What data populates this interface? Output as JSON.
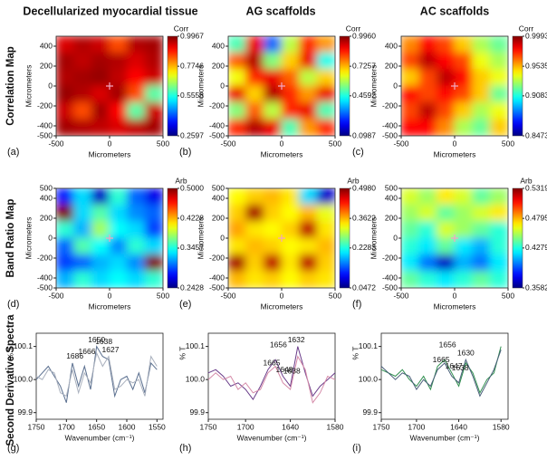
{
  "column_titles": [
    "Decellularized myocardial tissue",
    "AG scaffolds",
    "AC scaffolds"
  ],
  "row_titles": [
    "Correlation Map",
    "Band Ratio Map",
    "Second Derivative Spectra"
  ],
  "chart_data": [
    {
      "type": "heatmap",
      "panel": "(a)",
      "xlabel": "Micrometers",
      "ylabel": "Micrometers",
      "colorbar_title": "Corr",
      "colormap": "jet",
      "xlim": [
        -500,
        500
      ],
      "ylim": [
        -500,
        500
      ],
      "xticks": [
        -500,
        0,
        500
      ],
      "yticks": [
        -500,
        -400,
        -200,
        0,
        200,
        400
      ],
      "clim": [
        0.2597,
        0.9967
      ],
      "cticks": [
        0.9967,
        0.7746,
        0.5558,
        0.2597
      ],
      "z": [
        [
          0.93,
          0.96,
          0.94,
          0.85,
          0.96,
          0.97
        ],
        [
          0.97,
          0.95,
          0.97,
          0.96,
          0.93,
          0.96
        ],
        [
          0.96,
          0.97,
          0.98,
          0.95,
          0.9,
          0.94
        ],
        [
          0.98,
          0.96,
          0.93,
          0.97,
          0.85,
          0.6
        ],
        [
          0.94,
          0.85,
          0.97,
          0.9,
          0.6,
          0.94
        ],
        [
          0.97,
          0.96,
          0.95,
          0.93,
          0.95,
          0.97
        ]
      ]
    },
    {
      "type": "heatmap",
      "panel": "(b)",
      "xlabel": "Micrometers",
      "ylabel": "Micrometers",
      "colorbar_title": "Corr",
      "colormap": "jet",
      "xlim": [
        -500,
        500
      ],
      "ylim": [
        -500,
        500
      ],
      "xticks": [
        -500,
        0,
        500
      ],
      "yticks": [
        -500,
        -400,
        -200,
        0,
        200,
        400
      ],
      "clim": [
        0.0987,
        0.996
      ],
      "cticks": [
        {
          "value": 0.996,
          "label": "0.9960"
        },
        0.7257,
        0.4592,
        0.0987
      ],
      "z": [
        [
          0.5,
          0.9,
          0.3,
          0.6,
          0.85,
          0.75
        ],
        [
          0.8,
          0.95,
          0.55,
          0.7,
          0.9,
          0.45
        ],
        [
          0.65,
          0.85,
          0.9,
          0.8,
          0.6,
          0.7
        ],
        [
          0.9,
          0.7,
          0.95,
          0.85,
          0.75,
          0.9
        ],
        [
          0.55,
          0.8,
          0.6,
          0.85,
          0.9,
          0.5
        ],
        [
          0.85,
          0.95,
          0.9,
          0.5,
          0.75,
          0.85
        ]
      ]
    },
    {
      "type": "heatmap",
      "panel": "(c)",
      "xlabel": "Micrometers",
      "ylabel": "Micrometers",
      "colorbar_title": "Corr",
      "colormap": "jet",
      "xlim": [
        -500,
        500
      ],
      "ylim": [
        -500,
        500
      ],
      "xticks": [
        -500,
        0,
        500
      ],
      "yticks": [
        -500,
        -400,
        -200,
        0,
        200,
        400
      ],
      "clim": [
        0.8473,
        0.9993
      ],
      "cticks": [
        0.9993,
        0.9535,
        0.9083,
        0.8473
      ],
      "z": [
        [
          0.96,
          0.98,
          0.97,
          0.95,
          0.93,
          0.92
        ],
        [
          0.97,
          0.99,
          0.98,
          0.97,
          0.94,
          0.93
        ],
        [
          0.95,
          0.97,
          0.99,
          0.98,
          0.95,
          0.94
        ],
        [
          0.98,
          0.97,
          0.98,
          0.97,
          0.95,
          0.92
        ],
        [
          0.97,
          0.99,
          0.97,
          0.95,
          0.93,
          0.94
        ],
        [
          0.98,
          0.98,
          0.96,
          0.93,
          0.92,
          0.95
        ]
      ]
    },
    {
      "type": "heatmap",
      "panel": "(d)",
      "xlabel": "Micrometers",
      "ylabel": "Micrometers",
      "colorbar_title": "Arb",
      "colormap": "jet",
      "xlim": [
        -500,
        500
      ],
      "ylim": [
        -500,
        500
      ],
      "xticks": [
        -500,
        0,
        500
      ],
      "yticks": [
        -500,
        -400,
        -200,
        0,
        200,
        400,
        500
      ],
      "clim": [
        0.2428,
        0.5
      ],
      "cticks": [
        {
          "value": 0.5,
          "label": "0.5000"
        },
        0.4228,
        0.3457,
        0.2428
      ],
      "z": [
        [
          0.28,
          0.33,
          0.26,
          0.35,
          0.3,
          0.27
        ],
        [
          0.5,
          0.33,
          0.36,
          0.33,
          0.31,
          0.3
        ],
        [
          0.35,
          0.32,
          0.38,
          0.34,
          0.33,
          0.29
        ],
        [
          0.3,
          0.36,
          0.34,
          0.31,
          0.35,
          0.33
        ],
        [
          0.29,
          0.3,
          0.32,
          0.33,
          0.31,
          0.5
        ],
        [
          0.32,
          0.35,
          0.33,
          0.34,
          0.33,
          0.35
        ]
      ]
    },
    {
      "type": "heatmap",
      "panel": "(e)",
      "xlabel": "Micrometers",
      "ylabel": "Micrometers",
      "colorbar_title": "Arb",
      "colormap": "jet",
      "xlim": [
        -500,
        500
      ],
      "ylim": [
        -500,
        500
      ],
      "xticks": [
        -500,
        0,
        500
      ],
      "yticks": [
        -500,
        -400,
        -200,
        0,
        200,
        400,
        500
      ],
      "clim": [
        0.0472,
        0.498
      ],
      "cticks": [
        {
          "value": 0.498,
          "label": "0.4980"
        },
        0.3622,
        0.2283,
        0.0472
      ],
      "z": [
        [
          0.33,
          0.35,
          0.36,
          0.34,
          0.2,
          0.08
        ],
        [
          0.35,
          0.48,
          0.35,
          0.33,
          0.36,
          0.32
        ],
        [
          0.37,
          0.34,
          0.33,
          0.35,
          0.47,
          0.34
        ],
        [
          0.34,
          0.36,
          0.35,
          0.33,
          0.34,
          0.36
        ],
        [
          0.48,
          0.35,
          0.47,
          0.34,
          0.47,
          0.35
        ],
        [
          0.36,
          0.34,
          0.35,
          0.33,
          0.35,
          0.34
        ]
      ]
    },
    {
      "type": "heatmap",
      "panel": "(f)",
      "xlabel": "Micrometers",
      "ylabel": "Micrometers",
      "colorbar_title": "Arb",
      "colormap": "jet",
      "xlim": [
        -500,
        500
      ],
      "ylim": [
        -500,
        500
      ],
      "xticks": [
        -500,
        0,
        500
      ],
      "yticks": [
        -500,
        -400,
        -200,
        0,
        200,
        400,
        500
      ],
      "clim": [
        0.3582,
        0.5319
      ],
      "cticks": [
        0.5319,
        0.4795,
        0.4279,
        0.3582
      ],
      "z": [
        [
          0.46,
          0.45,
          0.47,
          0.46,
          0.44,
          0.45
        ],
        [
          0.45,
          0.46,
          0.44,
          0.45,
          0.46,
          0.47
        ],
        [
          0.44,
          0.43,
          0.46,
          0.45,
          0.44,
          0.43
        ],
        [
          0.43,
          0.42,
          0.44,
          0.42,
          0.41,
          0.43
        ],
        [
          0.42,
          0.4,
          0.37,
          0.41,
          0.4,
          0.42
        ],
        [
          0.44,
          0.43,
          0.42,
          0.43,
          0.44,
          0.43
        ]
      ]
    },
    {
      "type": "line",
      "panel": "(g)",
      "xlabel": "Wavenumber (cm⁻¹)",
      "ylabel": "% T",
      "xlim": [
        1750,
        1540
      ],
      "ylim": [
        99.88,
        100.14
      ],
      "xticks": [
        1750,
        1700,
        1650,
        1600,
        1550
      ],
      "yticks": [
        99.9,
        {
          "value": 100,
          "label": "100.0"
        },
        100.1
      ],
      "x": [
        1750,
        1740,
        1730,
        1720,
        1710,
        1700,
        1690,
        1680,
        1670,
        1660,
        1650,
        1640,
        1630,
        1620,
        1610,
        1600,
        1590,
        1580,
        1570,
        1560,
        1550
      ],
      "series": [
        {
          "color": "#5a6f8f",
          "values": [
            100.0,
            100.02,
            100.04,
            100.01,
            99.98,
            99.93,
            100.05,
            99.98,
            100.04,
            99.97,
            100.1,
            100.07,
            100.06,
            99.95,
            100.0,
            100.01,
            99.97,
            100.02,
            99.96,
            100.05,
            100.03
          ]
        },
        {
          "color": "#a9b0bd",
          "values": [
            100.01,
            100.0,
            100.03,
            100.02,
            99.96,
            99.95,
            100.03,
            99.96,
            100.02,
            99.99,
            100.08,
            100.04,
            100.07,
            99.97,
            99.98,
            100.0,
            99.99,
            100.0,
            99.95,
            100.07,
            100.04
          ]
        }
      ],
      "peaks": [
        1686,
        1666,
        1650,
        1638,
        1627
      ]
    },
    {
      "type": "line",
      "panel": "(h)",
      "xlabel": "Wavenumber (cm⁻¹)",
      "ylabel": "% T",
      "xlim": [
        1750,
        1580
      ],
      "ylim": [
        99.88,
        100.14
      ],
      "xticks": [
        1750,
        1700,
        1640,
        1580
      ],
      "yticks": [
        99.9,
        {
          "value": 100,
          "label": "100.0"
        },
        100.1
      ],
      "x": [
        1750,
        1740,
        1730,
        1720,
        1710,
        1700,
        1690,
        1680,
        1670,
        1660,
        1650,
        1640,
        1630,
        1620,
        1610,
        1600,
        1590,
        1580
      ],
      "series": [
        {
          "color": "#6a3d8a",
          "values": [
            100.02,
            100.03,
            100.01,
            99.98,
            99.99,
            99.97,
            99.94,
            99.98,
            100.03,
            100.06,
            100.01,
            99.98,
            100.1,
            100.02,
            99.95,
            99.98,
            100.0,
            100.02
          ]
        },
        {
          "color": "#d58aa8",
          "values": [
            100.0,
            100.02,
            100.0,
            100.01,
            99.97,
            99.99,
            99.96,
            99.97,
            100.02,
            100.04,
            99.99,
            99.97,
            100.07,
            100.03,
            99.93,
            99.96,
            100.01,
            100.0
          ]
        }
      ],
      "peaks": [
        1665,
        1656,
        1648,
        1638,
        1632
      ]
    },
    {
      "type": "line",
      "panel": "(i)",
      "xlabel": "Wavenumber (cm⁻¹)",
      "ylabel": "% T",
      "xlim": [
        1750,
        1570
      ],
      "ylim": [
        99.88,
        100.14
      ],
      "xticks": [
        1750,
        1700,
        1640,
        1580
      ],
      "yticks": [
        99.9,
        {
          "value": 100,
          "label": "100.0"
        },
        100.1
      ],
      "x": [
        1750,
        1740,
        1730,
        1720,
        1710,
        1700,
        1690,
        1680,
        1670,
        1660,
        1650,
        1640,
        1630,
        1620,
        1610,
        1600,
        1590,
        1580
      ],
      "series": [
        {
          "color": "#2f8f4e",
          "values": [
            100.03,
            100.02,
            100.01,
            100.03,
            100.0,
            99.98,
            100.01,
            99.97,
            100.04,
            100.06,
            100.02,
            99.98,
            100.05,
            100.02,
            99.96,
            100.0,
            100.02,
            100.1
          ]
        },
        {
          "color": "#4a5f7a",
          "values": [
            100.04,
            100.02,
            100.0,
            100.02,
            100.01,
            99.97,
            100.0,
            99.98,
            100.03,
            100.05,
            100.01,
            99.99,
            100.06,
            100.01,
            99.95,
            99.99,
            100.03,
            100.09
          ]
        }
      ],
      "peaks": [
        1665,
        1656,
        1647,
        1638,
        1630
      ]
    }
  ]
}
